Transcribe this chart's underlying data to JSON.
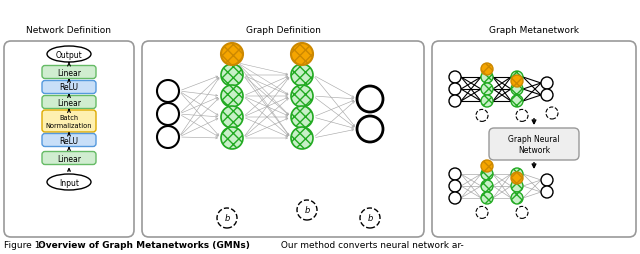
{
  "panel1_title": "Network Definition",
  "panel2_title": "Graph Definition",
  "panel3_title": "Graph Metanetwork",
  "caption_prefix": "Figure 1: ",
  "caption_bold": "Overview of Graph Metanetworks (GMNs)",
  "caption_rest": " Our method converts neural network ar-",
  "colors": {
    "orange_fill": "#f5a500",
    "orange_edge": "#cc8800",
    "green_fill": "#c8f0c8",
    "green_edge": "#22aa22",
    "white_fill": "white",
    "black_edge": "black",
    "edge_gray": "#aaaaaa",
    "edge_dark": "#555555",
    "panel_border": "#999999",
    "gnn_fill": "#eeeeee",
    "linear_fill": "#d0edd0",
    "linear_edge": "#66bb66",
    "relu_fill": "#c8dff8",
    "relu_edge": "#5599dd",
    "bn_fill": "#fef0b0",
    "bn_edge": "#ddaa00"
  }
}
